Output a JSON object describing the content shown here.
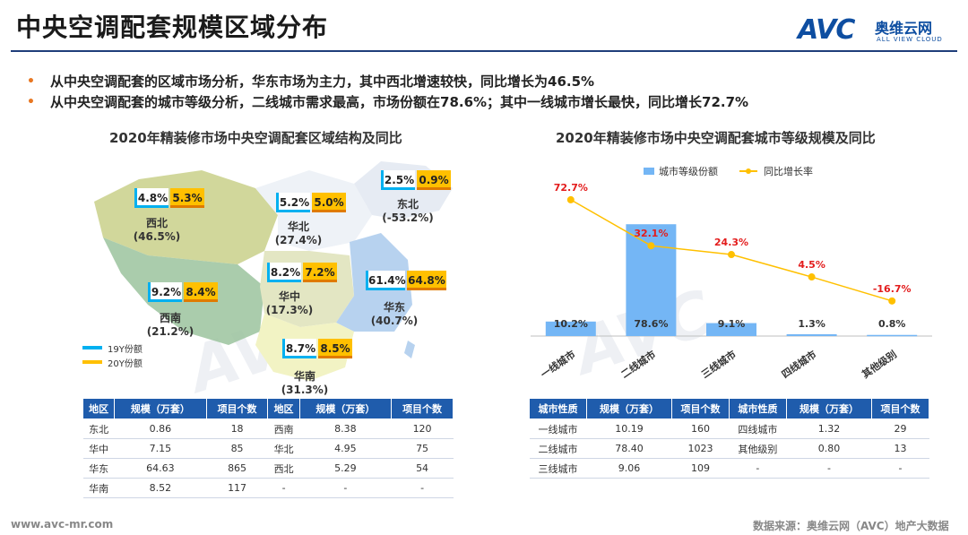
{
  "header": {
    "title": "中央空调配套规模区域分布",
    "logo_mark": "AVC",
    "logo_cn": "奥维云网",
    "logo_en": "ALL VIEW CLOUD"
  },
  "bullets": [
    "从中央空调配套的区域市场分析，华东市场为主力，其中西北增速较快，同比增长为46.5%",
    "从中央空调配套的城市等级分析，二线城市需求最高，市场份额在78.6%；其中一线城市增长最快，同比增长72.7%"
  ],
  "bullet_marker": "•",
  "left_chart": {
    "title": "2020年精装修市场中央空调配套区域结构及同比",
    "legend_19": "19Y份额",
    "legend_20": "20Y份额",
    "colors": {
      "y19": "#00b0f0",
      "y20": "#ffc000"
    },
    "regions": [
      {
        "name": "西北",
        "growth": "(46.5%)",
        "y19": "4.8%",
        "y20": "5.3%"
      },
      {
        "name": "华北",
        "growth": "(27.4%)",
        "y19": "5.2%",
        "y20": "5.0%"
      },
      {
        "name": "东北",
        "growth": "(-53.2%)",
        "y19": "2.5%",
        "y20": "0.9%"
      },
      {
        "name": "西南",
        "growth": "(21.2%)",
        "y19": "9.2%",
        "y20": "8.4%"
      },
      {
        "name": "华中",
        "growth": "(17.3%)",
        "y19": "8.2%",
        "y20": "7.2%"
      },
      {
        "name": "华东",
        "growth": "(40.7%)",
        "y19": "61.4%",
        "y20": "64.8%"
      },
      {
        "name": "华南",
        "growth": "(31.3%)",
        "y19": "8.7%",
        "y20": "8.5%"
      }
    ]
  },
  "chart_data": {
    "type": "bar",
    "title": "2020年精装修市场中央空调配套城市等级规模及同比",
    "categories": [
      "一线城市",
      "二线城市",
      "三线城市",
      "四线城市",
      "其他级别"
    ],
    "series": [
      {
        "name": "城市等级份额",
        "type": "bar",
        "values": [
          10.2,
          78.6,
          9.1,
          1.3,
          0.8
        ],
        "labels": [
          "10.2%",
          "78.6%",
          "9.1%",
          "1.3%",
          "0.8%"
        ],
        "color": "#74b6f5"
      },
      {
        "name": "同比增长率",
        "type": "line",
        "values": [
          72.7,
          32.1,
          24.3,
          4.5,
          -16.7
        ],
        "labels": [
          "72.7%",
          "32.1%",
          "24.3%",
          "4.5%",
          "-16.7%"
        ],
        "color": "#ffc000",
        "label_color": "#e31c1c"
      }
    ],
    "bar_range": [
      0,
      80
    ],
    "line_range": [
      -20,
      75
    ],
    "legend_position": "top"
  },
  "table_region": {
    "headers": [
      "地区",
      "规模（万套）",
      "项目个数",
      "地区",
      "规模（万套）",
      "项目个数"
    ],
    "rows": [
      [
        "东北",
        "0.86",
        "18",
        "西南",
        "8.38",
        "120"
      ],
      [
        "华中",
        "7.15",
        "85",
        "华北",
        "4.95",
        "75"
      ],
      [
        "华东",
        "64.63",
        "865",
        "西北",
        "5.29",
        "54"
      ],
      [
        "华南",
        "8.52",
        "117",
        "-",
        "-",
        "-"
      ]
    ]
  },
  "table_city": {
    "headers": [
      "城市性质",
      "规模（万套）",
      "项目个数",
      "城市性质",
      "规模（万套）",
      "项目个数"
    ],
    "rows": [
      [
        "一线城市",
        "10.19",
        "160",
        "四线城市",
        "1.32",
        "29"
      ],
      [
        "二线城市",
        "78.40",
        "1023",
        "其他级别",
        "0.80",
        "13"
      ],
      [
        "三线城市",
        "9.06",
        "109",
        "-",
        "-",
        "-"
      ]
    ]
  },
  "footer": {
    "website": "www.avc-mr.com",
    "source": "数据来源：奥维云网（AVC）地产大数据"
  }
}
